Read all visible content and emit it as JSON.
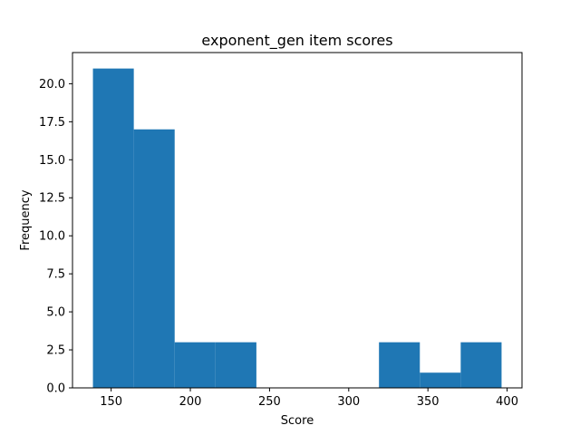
{
  "chart_data": {
    "type": "bar",
    "title": "exponent_gen item scores",
    "xlabel": "Score",
    "ylabel": "Frequency",
    "bin_edges": [
      138.5,
      164.3,
      190.1,
      215.9,
      241.7,
      267.5,
      293.3,
      319.1,
      344.9,
      370.7,
      396.5
    ],
    "values": [
      21,
      17,
      3,
      3,
      0,
      0,
      0,
      3,
      1,
      3
    ],
    "xlim": [
      125.6,
      409.4
    ],
    "ylim": [
      0,
      22.05
    ],
    "xticks": [
      150,
      200,
      250,
      300,
      350,
      400
    ],
    "yticks": [
      0.0,
      2.5,
      5.0,
      7.5,
      10.0,
      12.5,
      15.0,
      17.5,
      20.0
    ],
    "xtick_labels": [
      "150",
      "200",
      "250",
      "300",
      "350",
      "400"
    ],
    "ytick_labels": [
      "0.0",
      "2.5",
      "5.0",
      "7.5",
      "10.0",
      "12.5",
      "15.0",
      "17.5",
      "20.0"
    ],
    "bar_color": "#1f77b4",
    "grid": false,
    "legend": false
  }
}
